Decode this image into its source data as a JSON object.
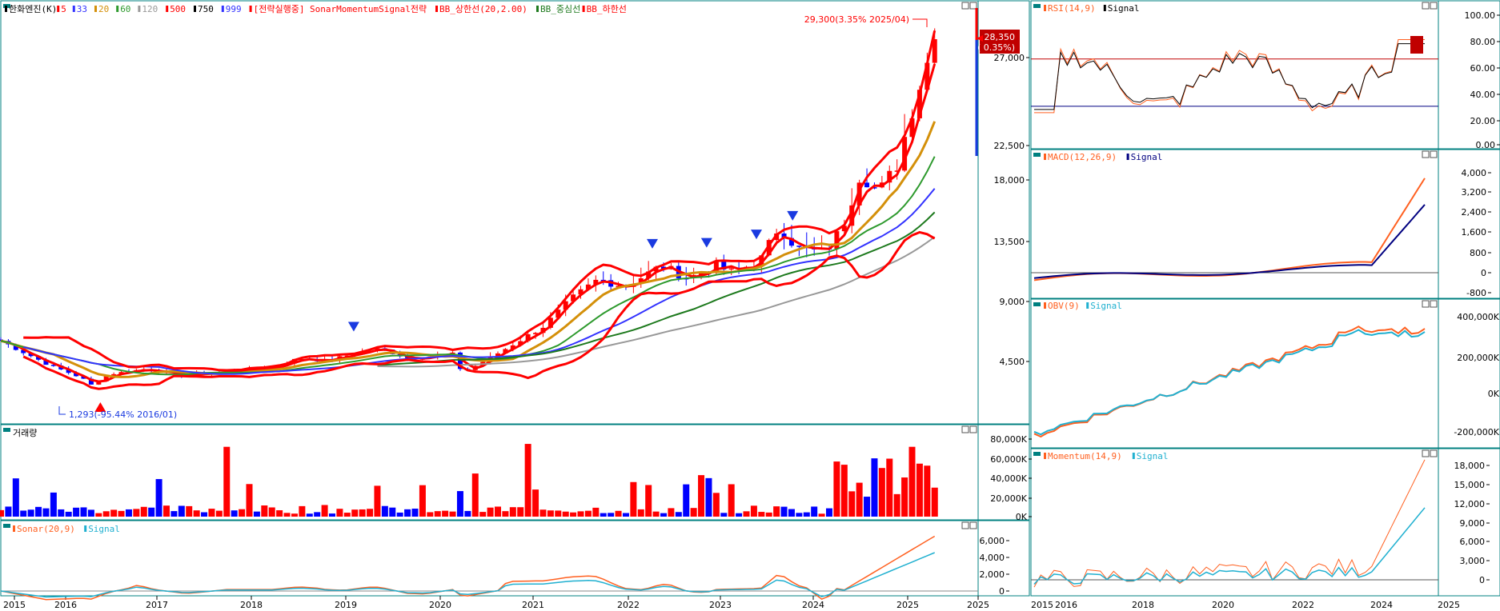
{
  "colors": {
    "up": "#ff0000",
    "down": "#0000ff",
    "frame": "#008080",
    "grid": "#c8c8c8",
    "ma5": "#ff0000",
    "ma33": "#3333ff",
    "ma20": "#d4900a",
    "ma60": "#2e9a2e",
    "ma120": "#999999",
    "bb": "#ff0000",
    "bbmid": "#1e7a1e",
    "signal_dark": "#000080",
    "signal_cyan": "#20b0d0",
    "ind_orange": "#ff6020"
  },
  "main_legend": [
    {
      "text": "한화엔진(K)",
      "color": "#000000"
    },
    {
      "text": "5",
      "color": "#ff0000"
    },
    {
      "text": "33",
      "color": "#3333ff"
    },
    {
      "text": "20",
      "color": "#d4900a"
    },
    {
      "text": "60",
      "color": "#2e9a2e"
    },
    {
      "text": "120",
      "color": "#999999"
    },
    {
      "text": "500",
      "color": "#ff0000"
    },
    {
      "text": "750",
      "color": "#000000"
    },
    {
      "text": "999",
      "color": "#3333ff"
    },
    {
      "text": "[전략실행중] SonarMomentumSignal전략",
      "color": "#ff0000"
    },
    {
      "text": "BB_상한선(20,2.00)",
      "color": "#ff0000"
    },
    {
      "text": "BB_중심선",
      "color": "#1e7a1e"
    },
    {
      "text": "BB_하한선",
      "color": "#ff0000"
    }
  ],
  "main_annotations": {
    "high": "29,300(3.35% 2025/04)",
    "low": "1,293(-95.44% 2016/01)",
    "last_price": "28,350",
    "last_change": "( 0.35%)"
  },
  "volume_legend": "거래량",
  "sonar_legend": [
    "Sonar(20,9)",
    "Signal"
  ],
  "rsi_legend": [
    "RSI(14,9)",
    "Signal"
  ],
  "macd_legend": [
    "MACD(12,26,9)",
    "Signal"
  ],
  "obv_legend": [
    "OBV(9)",
    "Signal"
  ],
  "mom_legend": [
    "Momentum(14,9)",
    "Signal"
  ],
  "axes": {
    "main_y": [
      "27,000",
      "22,500",
      "18,000",
      "13,500",
      "9,000",
      "4,500"
    ],
    "volume_y": [
      "80,000K",
      "60,000K",
      "40,000K",
      "20,000K",
      "0K"
    ],
    "sonar_y": [
      "6,000",
      "4,000",
      "2,000",
      "0"
    ],
    "rsi_y": [
      "100.00",
      "80.00",
      "60.00",
      "40.00",
      "20.00",
      "0.00"
    ],
    "macd_y": [
      "4,000",
      "3,200",
      "2,400",
      "1,600",
      "800",
      "0",
      "-800"
    ],
    "obv_y": [
      "400,000K",
      "200,000K",
      "0K",
      "-200,000K"
    ],
    "mom_y": [
      "18,000",
      "15,000",
      "12,000",
      "9,000",
      "6,000",
      "3,000",
      "0"
    ],
    "left_x": [
      "2015",
      "2016",
      "2017",
      "2018",
      "2019",
      "2020",
      "2021",
      "2022",
      "2023",
      "2024",
      "2025",
      "2025"
    ],
    "right_x": [
      "2015",
      "2016",
      "2018",
      "2020",
      "2022",
      "2024",
      "2025"
    ]
  },
  "chart_data": [
    {
      "type": "candlestick",
      "title": "한화엔진(K)",
      "x": [
        "2015",
        "2016",
        "2017",
        "2018",
        "2019",
        "2020",
        "2021",
        "2022",
        "2023",
        "2024",
        "2025"
      ],
      "ylim": [
        0,
        31000
      ],
      "series": [
        {
          "name": "BB_상한선(20,2.00)"
        },
        {
          "name": "BB_중심선"
        },
        {
          "name": "BB_하한선"
        }
      ],
      "annotations": [
        "29,300(3.35% 2025/04)",
        "1,293(-95.44% 2016/01)"
      ],
      "last": 28350
    },
    {
      "type": "bar",
      "title": "거래량",
      "ylim": [
        0,
        90000
      ]
    },
    {
      "type": "line",
      "title": "Sonar(20,9)",
      "ylim": [
        -500,
        7500
      ]
    },
    {
      "type": "line",
      "title": "RSI(14,9)",
      "ylim": [
        0,
        110
      ],
      "reference_lines": [
        70,
        30
      ]
    },
    {
      "type": "line",
      "title": "MACD(12,26,9)",
      "ylim": [
        -1300,
        4800
      ]
    },
    {
      "type": "line",
      "title": "OBV(9)"
    },
    {
      "type": "line",
      "title": "Momentum(14,9)",
      "ylim": [
        -1500,
        20000
      ]
    }
  ]
}
